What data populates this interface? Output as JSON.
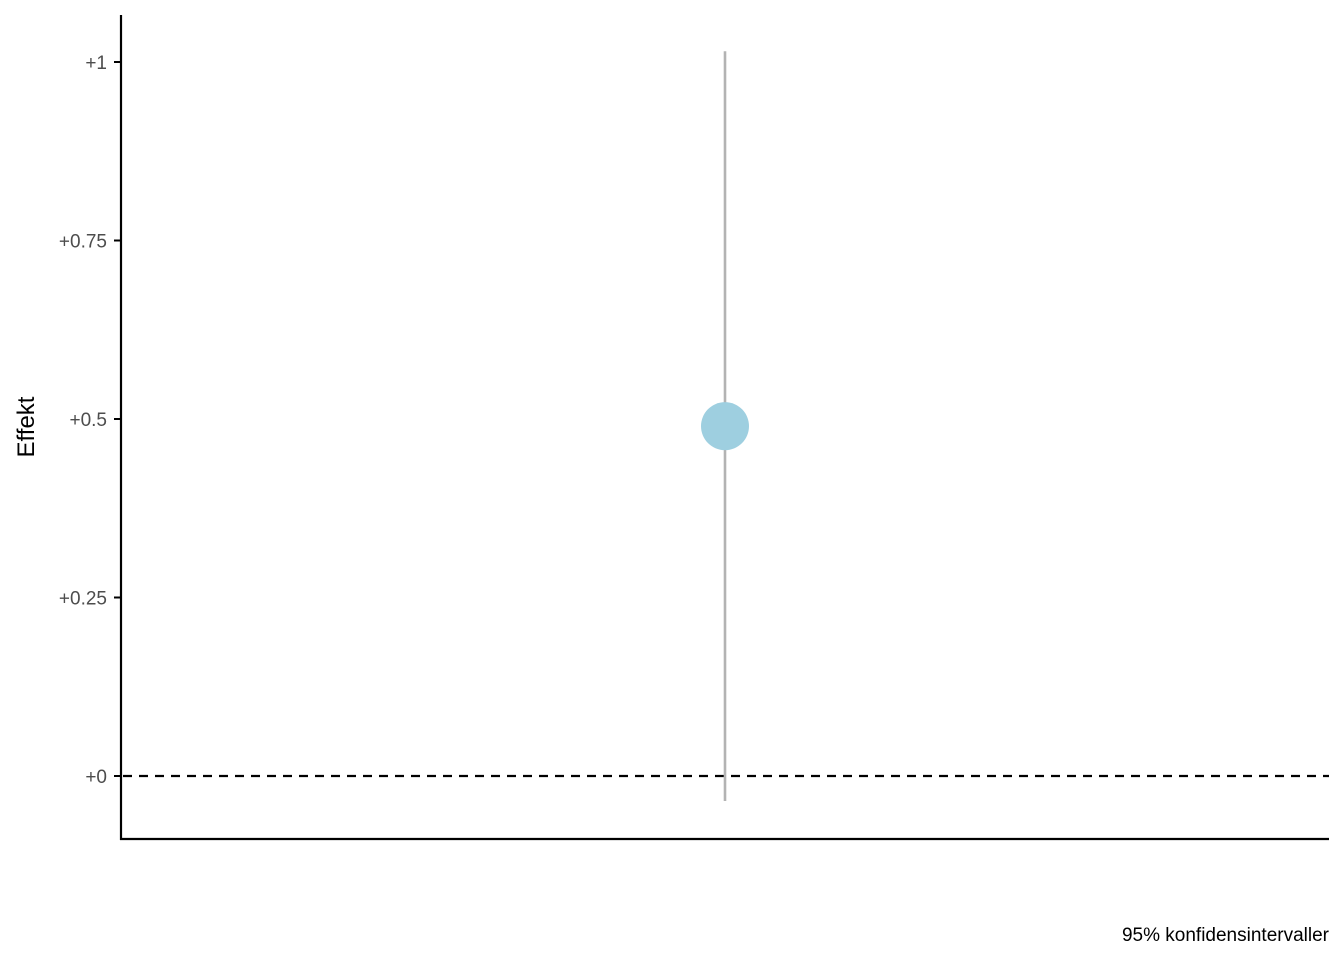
{
  "chart_data": {
    "type": "scatter",
    "ylabel": "Effekt",
    "xlabel": "",
    "caption": "95% konfidensintervaller",
    "ylim": [
      -0.09,
      1.065
    ],
    "yticks": [
      {
        "value": 0,
        "label": "+0"
      },
      {
        "value": 0.25,
        "label": "+0.25"
      },
      {
        "value": 0.5,
        "label": "+0.5"
      },
      {
        "value": 0.75,
        "label": "+0.75"
      },
      {
        "value": 1,
        "label": "+1"
      }
    ],
    "reference_line": {
      "y": 0,
      "style": "dashed"
    },
    "points": [
      {
        "estimate": 0.49,
        "ci_low": -0.035,
        "ci_high": 1.015
      }
    ],
    "colors": {
      "point": "#9ecfe0",
      "interval": "#b3b3b3",
      "axis": "#000000",
      "reference": "#000000"
    },
    "grid": false,
    "legend": "none"
  }
}
